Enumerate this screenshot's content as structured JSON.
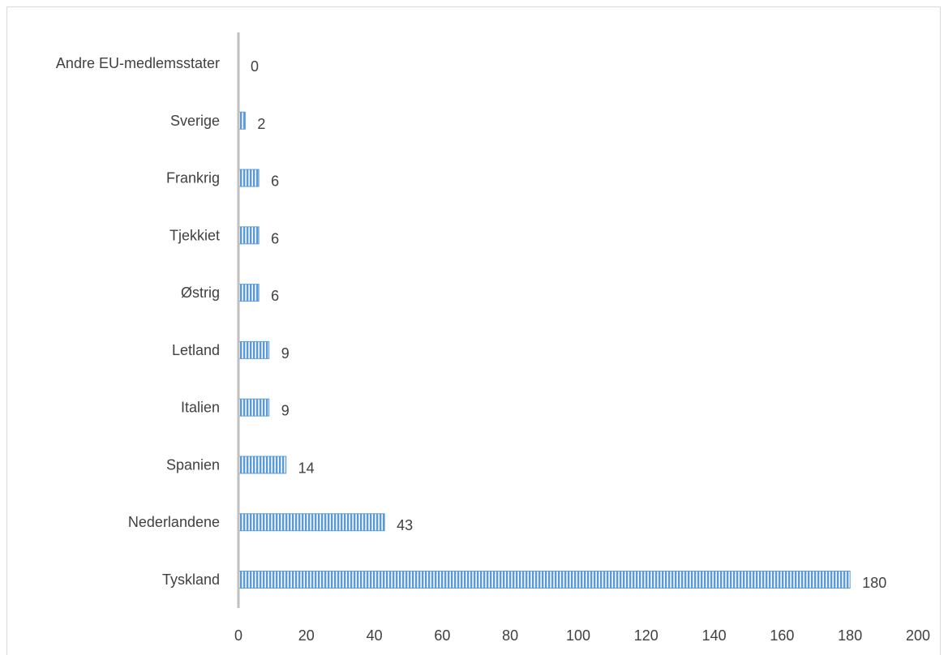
{
  "chart_data": {
    "type": "bar",
    "orientation": "horizontal",
    "categories": [
      "Andre EU-medlemsstater",
      "Sverige",
      "Frankrig",
      "Tjekkiet",
      "Østrig",
      "Letland",
      "Italien",
      "Spanien",
      "Nederlandene",
      "Tyskland"
    ],
    "values": [
      0,
      2,
      6,
      6,
      6,
      9,
      9,
      14,
      43,
      180
    ],
    "value_labels": [
      "0",
      "2",
      "6",
      "6",
      "6",
      "9",
      "9",
      "14",
      "43",
      "180"
    ],
    "xlim": [
      0,
      200
    ],
    "xticks": [
      0,
      20,
      40,
      60,
      80,
      100,
      120,
      140,
      160,
      180,
      200
    ],
    "xtick_labels": [
      "0",
      "20",
      "40",
      "60",
      "80",
      "100",
      "120",
      "140",
      "160",
      "180",
      "200"
    ],
    "title": "",
    "xlabel": "",
    "ylabel": "",
    "grid": false,
    "legend": "none",
    "bar_fill": "vertical-stripe",
    "colors": {
      "bar": "#5b9bd5",
      "bar_stripe_gap": "#ffffff",
      "axis": "#bfbfbf",
      "frame": "#d9d9d9",
      "text": "#404040"
    }
  }
}
